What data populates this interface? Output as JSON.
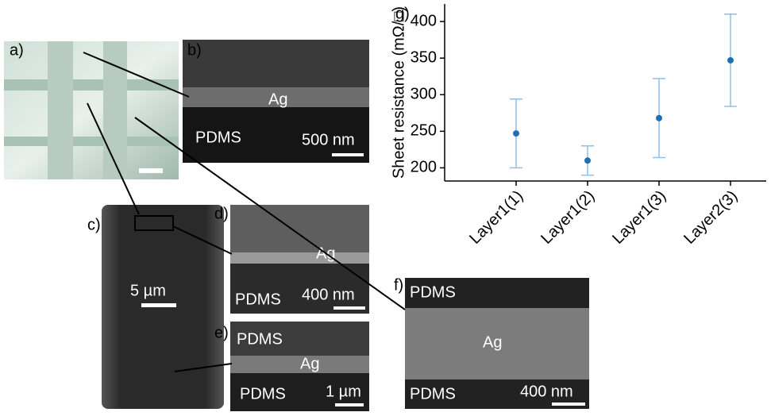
{
  "panels": {
    "a": {
      "label": "a)"
    },
    "b": {
      "label": "b)",
      "layer": "Ag",
      "substrate": "PDMS",
      "scale": "500 nm"
    },
    "c": {
      "label": "c)",
      "scale": "5 µm"
    },
    "d": {
      "label": "d)",
      "layer": "Ag",
      "substrate": "PDMS",
      "scale": "400 nm"
    },
    "e": {
      "label": "e)",
      "top": "PDMS",
      "layer": "Ag",
      "bottom": "PDMS",
      "scale": "1 µm"
    },
    "f": {
      "label": "f)",
      "top": "PDMS",
      "layer": "Ag",
      "bottom": "PDMS",
      "scale": "400 nm"
    }
  },
  "chart_data": {
    "type": "errorbar",
    "panel_label": "g)",
    "y_label": "Sheet resistance (mΩ/□)",
    "categories": [
      "Layer1(1)",
      "Layer1(2)",
      "Layer1(3)",
      "Layer2(3)"
    ],
    "values": [
      247,
      210,
      268,
      347
    ],
    "errors": [
      47,
      20,
      54,
      63
    ],
    "color": "#1f6fb5",
    "error_color": "#8fbfe6",
    "ylim": [
      182,
      424
    ],
    "yticks": [
      200,
      250,
      300,
      350,
      400
    ]
  }
}
